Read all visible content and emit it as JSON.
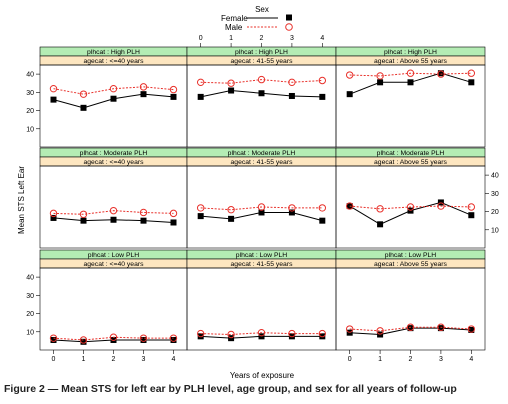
{
  "legend": {
    "title": "Sex",
    "entries": [
      {
        "label": "Female",
        "color": "#000000",
        "marker": "square",
        "line": "solid"
      },
      {
        "label": "Male",
        "color": "#e8302a",
        "marker": "circle-open",
        "line": "dashed"
      }
    ]
  },
  "caption": "Figure 2 — Mean STS for left ear by PLH level, age group, and sex for all years of follow-up",
  "colors": {
    "strip_plh": "#b4ecb4",
    "strip_age": "#fde6c0",
    "female": "#000000",
    "male": "#e8302a"
  },
  "chart_data": {
    "type": "line",
    "layout": "trellis 3x3",
    "xlabel": "Years of exposure",
    "ylabel": "Mean STS Left Ear",
    "x": [
      0,
      1,
      2,
      3,
      4
    ],
    "xticks": [
      "0",
      "1",
      "2",
      "3",
      "4"
    ],
    "yticks": [
      "10",
      "20",
      "30",
      "40"
    ],
    "ylim": [
      0,
      45
    ],
    "grid": false,
    "legend_position": "top-center",
    "panels": [
      {
        "plh": "plhcat : High PLH",
        "age": "agecat : <=40 years",
        "series": [
          {
            "name": "Female",
            "values": [
              26,
              21.5,
              26.5,
              29,
              27.5
            ]
          },
          {
            "name": "Male",
            "values": [
              32,
              29,
              32,
              33,
              31.5
            ]
          }
        ]
      },
      {
        "plh": "plhcat : High PLH",
        "age": "agecat : 41-55 years",
        "series": [
          {
            "name": "Female",
            "values": [
              27.5,
              31,
              29.5,
              28,
              27.5
            ]
          },
          {
            "name": "Male",
            "values": [
              35.5,
              35,
              37,
              35.5,
              36.5
            ]
          }
        ]
      },
      {
        "plh": "plhcat : High PLH",
        "age": "agecat : Above 55 years",
        "series": [
          {
            "name": "Female",
            "values": [
              29,
              35.5,
              35.5,
              40.5,
              35.5
            ]
          },
          {
            "name": "Male",
            "values": [
              39.5,
              39,
              40.5,
              40,
              40.5
            ]
          }
        ]
      },
      {
        "plh": "plhcat : Moderate PLH",
        "age": "agecat : <=40 years",
        "series": [
          {
            "name": "Female",
            "values": [
              16.5,
              15,
              15.5,
              15,
              14
            ]
          },
          {
            "name": "Male",
            "values": [
              19,
              18.5,
              20.5,
              19.5,
              19
            ]
          }
        ]
      },
      {
        "plh": "plhcat : Moderate PLH",
        "age": "agecat : 41-55 years",
        "series": [
          {
            "name": "Female",
            "values": [
              17.5,
              16,
              19.5,
              19.5,
              15
            ]
          },
          {
            "name": "Male",
            "values": [
              22,
              21,
              22.5,
              22,
              22
            ]
          }
        ]
      },
      {
        "plh": "plhcat : Moderate PLH",
        "age": "agecat : Above 55 years",
        "series": [
          {
            "name": "Female",
            "values": [
              23,
              13,
              20.5,
              25,
              18
            ]
          },
          {
            "name": "Male",
            "values": [
              23,
              21.5,
              22.5,
              23,
              22.5
            ]
          }
        ]
      },
      {
        "plh": "plhcat : Low PLH",
        "age": "agecat : <=40 years",
        "series": [
          {
            "name": "Female",
            "values": [
              5.5,
              4.5,
              5.5,
              5.5,
              5.5
            ]
          },
          {
            "name": "Male",
            "values": [
              6.5,
              5.5,
              7,
              6.5,
              6.5
            ]
          }
        ]
      },
      {
        "plh": "plhcat : Low PLH",
        "age": "agecat : 41-55 years",
        "series": [
          {
            "name": "Female",
            "values": [
              7.5,
              6.5,
              7.5,
              7.5,
              7.5
            ]
          },
          {
            "name": "Male",
            "values": [
              9,
              8.5,
              9.5,
              9,
              9
            ]
          }
        ]
      },
      {
        "plh": "plhcat : Low PLH",
        "age": "agecat : Above 55 years",
        "series": [
          {
            "name": "Female",
            "values": [
              9.5,
              8.5,
              12,
              12,
              11
            ]
          },
          {
            "name": "Male",
            "values": [
              11.5,
              10.5,
              12.5,
              12.5,
              11.5
            ]
          }
        ]
      }
    ]
  }
}
